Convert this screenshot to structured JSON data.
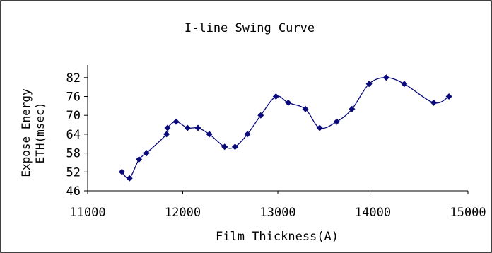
{
  "chart_data": {
    "type": "scatter",
    "title": "I-line Swing Curve",
    "xlabel": "Film Thickness(A)",
    "ylabel_line1": "Expose Energy",
    "ylabel_line2": "ETH(msec)",
    "xlim": [
      11000,
      15000
    ],
    "ylim": [
      46,
      86
    ],
    "x_ticks": [
      11000,
      12000,
      13000,
      14000,
      15000
    ],
    "y_ticks": [
      46,
      52,
      58,
      64,
      70,
      76,
      82
    ],
    "grid": false,
    "legend": "none",
    "marker": "diamond",
    "line": "smooth",
    "color": "#0a0a7a",
    "series": [
      {
        "x": [
          11360,
          11440,
          11540,
          11620,
          11830,
          11840,
          11930,
          12050,
          12160,
          12280,
          12440,
          12550,
          12680,
          12820,
          12980,
          13110,
          13290,
          13440,
          13620,
          13780,
          13960,
          14140,
          14330,
          14640,
          14800
        ],
        "y": [
          52,
          50,
          56,
          58,
          64,
          66,
          68,
          66,
          66,
          64,
          60,
          60,
          64,
          70,
          76,
          74,
          72,
          66,
          68,
          72,
          80,
          82,
          80,
          74,
          76
        ]
      }
    ]
  }
}
